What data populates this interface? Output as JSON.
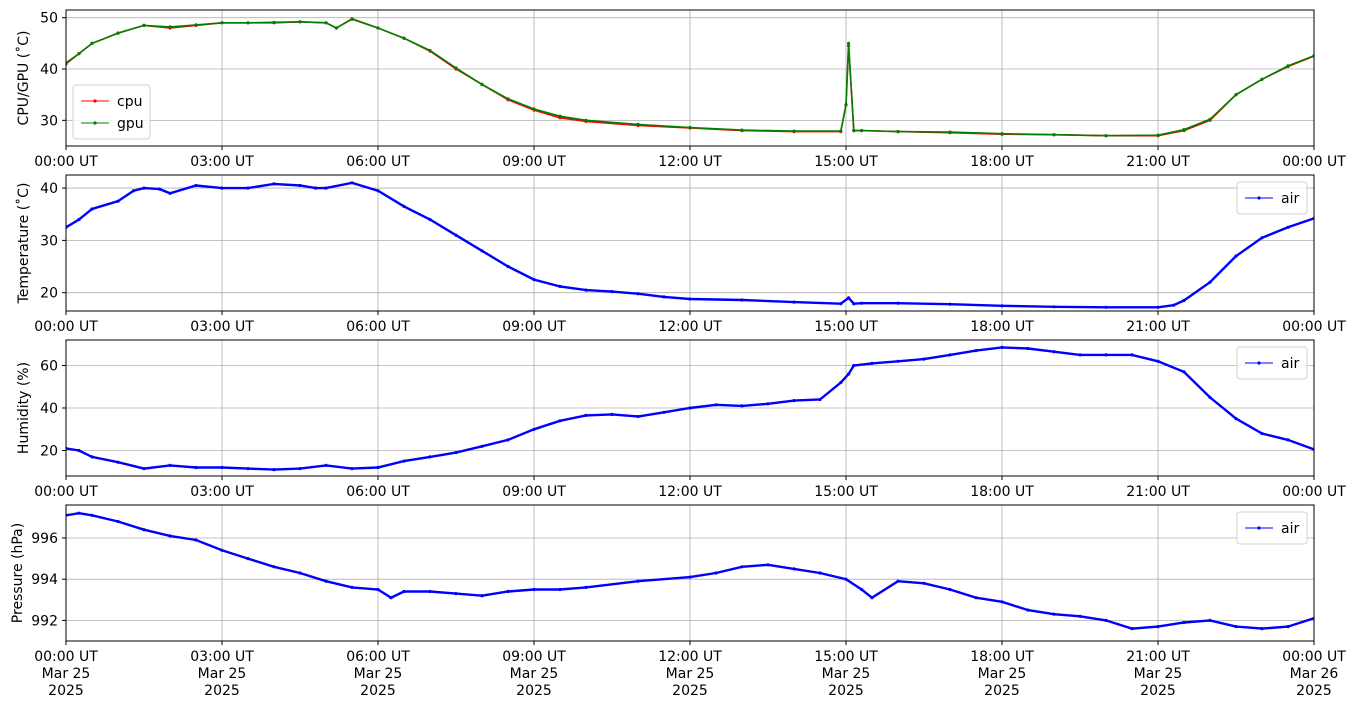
{
  "chart_data": [
    {
      "type": "line",
      "ylabel": "CPU/GPU (˚C)",
      "ylim": [
        25,
        51.5
      ],
      "yticks": [
        30,
        40,
        50
      ],
      "legend": "lower-left",
      "grid": true,
      "series": [
        {
          "name": "cpu",
          "color": "#ff0000",
          "x": [
            0,
            0.25,
            0.5,
            1,
            1.5,
            2,
            2.5,
            3,
            3.5,
            4,
            4.5,
            5,
            5.2,
            5.5,
            6,
            6.5,
            7,
            7.5,
            8,
            8.5,
            9,
            9.5,
            10,
            11,
            12,
            13,
            14,
            14.9,
            15.0,
            15.05,
            15.15,
            15.3,
            16,
            17,
            18,
            19,
            20,
            21,
            21.5,
            22,
            22.5,
            23,
            23.5,
            24
          ],
          "values": [
            41,
            43,
            45,
            47,
            48.5,
            48,
            48.5,
            49,
            49,
            49,
            49.2,
            49,
            48,
            49.8,
            48,
            46,
            43.5,
            40,
            37,
            34,
            32,
            30.5,
            29.8,
            29,
            28.5,
            28,
            27.8,
            27.8,
            33,
            44.5,
            28,
            28,
            27.8,
            27.6,
            27.3,
            27.2,
            27,
            27,
            28,
            30,
            35,
            38,
            40.5,
            42.5
          ]
        },
        {
          "name": "gpu",
          "color": "#008000",
          "x": [
            0,
            0.25,
            0.5,
            1,
            1.5,
            2,
            2.5,
            3,
            3.5,
            4,
            4.5,
            5,
            5.2,
            5.5,
            6,
            6.5,
            7,
            7.5,
            8,
            8.5,
            9,
            9.5,
            10,
            11,
            12,
            13,
            14,
            14.9,
            15.0,
            15.05,
            15.15,
            15.3,
            16,
            17,
            18,
            19,
            20,
            21,
            21.5,
            22,
            22.5,
            23,
            23.5,
            24
          ],
          "values": [
            41.2,
            43,
            45,
            47,
            48.5,
            48.2,
            48.6,
            49,
            49,
            49.1,
            49.2,
            49,
            48,
            49.7,
            48,
            46,
            43.6,
            40.2,
            37,
            34.2,
            32.2,
            30.8,
            30,
            29.2,
            28.6,
            28.1,
            27.9,
            27.9,
            33,
            45,
            28,
            28,
            27.8,
            27.7,
            27.4,
            27.2,
            27,
            27.1,
            28.2,
            30.2,
            35,
            38,
            40.6,
            42.6
          ]
        }
      ]
    },
    {
      "type": "line",
      "ylabel": "Temperature (˚C)",
      "ylim": [
        16.5,
        42.5
      ],
      "yticks": [
        20,
        30,
        40
      ],
      "legend": "upper-right",
      "grid": true,
      "series": [
        {
          "name": "air",
          "color": "#0000ff",
          "x": [
            0,
            0.25,
            0.5,
            1,
            1.3,
            1.5,
            1.8,
            2,
            2.5,
            3,
            3.5,
            4,
            4.5,
            4.8,
            5,
            5.5,
            6,
            6.5,
            7,
            7.5,
            8,
            8.5,
            9,
            9.5,
            10,
            10.5,
            11,
            11.5,
            12,
            13,
            14,
            14.9,
            15.05,
            15.15,
            15.3,
            16,
            17,
            18,
            19,
            20,
            21,
            21.3,
            21.5,
            22,
            22.5,
            23,
            23.5,
            24
          ],
          "values": [
            32.5,
            34,
            36,
            37.5,
            39.5,
            40,
            39.8,
            39,
            40.5,
            40,
            40,
            40.8,
            40.5,
            40,
            40,
            41,
            39.5,
            36.5,
            34,
            31,
            28,
            25,
            22.5,
            21.2,
            20.5,
            20.2,
            19.8,
            19.2,
            18.8,
            18.6,
            18.2,
            17.9,
            19,
            17.9,
            18,
            18,
            17.8,
            17.5,
            17.3,
            17.2,
            17.2,
            17.6,
            18.5,
            22,
            27,
            30.5,
            32.5,
            34.2
          ]
        }
      ]
    },
    {
      "type": "line",
      "ylabel": "Humidity (%)",
      "ylim": [
        8,
        72
      ],
      "yticks": [
        20,
        40,
        60
      ],
      "legend": "upper-right",
      "grid": true,
      "series": [
        {
          "name": "air",
          "color": "#0000ff",
          "x": [
            0,
            0.25,
            0.5,
            1,
            1.5,
            2,
            2.5,
            3,
            3.5,
            4,
            4.5,
            5,
            5.5,
            6,
            6.5,
            7,
            7.5,
            8,
            8.5,
            9,
            9.5,
            10,
            10.5,
            11,
            11.5,
            12,
            12.5,
            13,
            13.5,
            14,
            14.5,
            14.9,
            15.05,
            15.15,
            15.5,
            16,
            16.5,
            17,
            17.5,
            18,
            18.5,
            19,
            19.5,
            20,
            20.5,
            21,
            21.5,
            22,
            22.5,
            23,
            23.5,
            24
          ],
          "values": [
            21,
            20,
            17,
            14.5,
            11.5,
            13,
            12,
            12,
            11.5,
            11,
            11.5,
            13,
            11.5,
            12,
            15,
            17,
            19,
            22,
            25,
            30,
            34,
            36.5,
            37,
            36,
            38,
            40,
            41.5,
            41,
            42,
            43.5,
            44,
            52,
            56,
            60,
            61,
            62,
            63,
            65,
            67,
            68.5,
            68,
            66.5,
            65,
            65,
            65,
            62,
            57,
            45,
            35,
            28,
            25,
            20.5
          ]
        }
      ]
    },
    {
      "type": "line",
      "ylabel": "Pressure (hPa)",
      "ylim": [
        991,
        997.6
      ],
      "yticks": [
        992,
        994,
        996
      ],
      "legend": "upper-right",
      "grid": true,
      "series": [
        {
          "name": "air",
          "color": "#0000ff",
          "x": [
            0,
            0.25,
            0.5,
            1,
            1.5,
            2,
            2.5,
            3,
            3.5,
            4,
            4.5,
            5,
            5.5,
            6,
            6.25,
            6.5,
            7,
            7.5,
            8,
            8.5,
            9,
            9.5,
            10,
            11,
            12,
            12.5,
            13,
            13.5,
            14,
            14.5,
            15,
            15.3,
            15.5,
            16,
            16.5,
            17,
            17.5,
            18,
            18.5,
            19,
            19.5,
            20,
            20.5,
            21,
            21.5,
            22,
            22.5,
            23,
            23.5,
            24
          ],
          "values": [
            997.1,
            997.2,
            997.1,
            996.8,
            996.4,
            996.1,
            995.9,
            995.4,
            995,
            994.6,
            994.3,
            993.9,
            993.6,
            993.5,
            993.1,
            993.4,
            993.4,
            993.3,
            993.2,
            993.4,
            993.5,
            993.5,
            993.6,
            993.9,
            994.1,
            994.3,
            994.6,
            994.7,
            994.5,
            994.3,
            994,
            993.5,
            993.1,
            993.9,
            993.8,
            993.5,
            993.1,
            992.9,
            992.5,
            992.3,
            992.2,
            992,
            991.6,
            991.7,
            991.9,
            992,
            991.7,
            991.6,
            991.7,
            992.1
          ]
        }
      ]
    }
  ],
  "x_axis": {
    "range_hours": [
      0,
      24
    ],
    "tick_hours": [
      0,
      3,
      6,
      9,
      12,
      15,
      18,
      21,
      24
    ],
    "tick_labels": [
      "00:00 UT",
      "03:00 UT",
      "06:00 UT",
      "09:00 UT",
      "12:00 UT",
      "15:00 UT",
      "18:00 UT",
      "21:00 UT",
      "00:00 UT"
    ],
    "date_labels": [
      "Mar 25",
      "Mar 25",
      "Mar 25",
      "Mar 25",
      "Mar 25",
      "Mar 25",
      "Mar 25",
      "Mar 25",
      "Mar 26"
    ],
    "year_labels": [
      "2025",
      "2025",
      "2025",
      "2025",
      "2025",
      "2025",
      "2025",
      "2025",
      "2025"
    ]
  }
}
